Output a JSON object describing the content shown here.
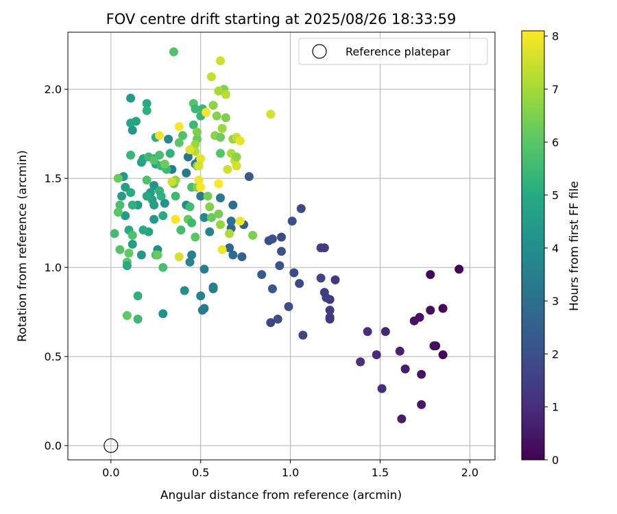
{
  "chart_data": {
    "type": "scatter",
    "title": "FOV centre drift starting at 2025/08/26 18:33:59",
    "xlabel": "Angular distance from reference (arcmin)",
    "ylabel": "Rotation from reference (arcmin)",
    "xlim": [
      -0.24,
      2.14
    ],
    "ylim": [
      -0.08,
      2.32
    ],
    "xticks": [
      0.0,
      0.5,
      1.0,
      1.5,
      2.0
    ],
    "xtick_labels": [
      "0.0",
      "0.5",
      "1.0",
      "1.5",
      "2.0"
    ],
    "yticks": [
      0.0,
      0.5,
      1.0,
      1.5,
      2.0
    ],
    "ytick_labels": [
      "0.0",
      "0.5",
      "1.0",
      "1.5",
      "2.0"
    ],
    "grid": true,
    "legend_position": "top-right",
    "legend": [
      "Reference platepar"
    ],
    "reference_point": {
      "x": 0.0,
      "y": 0.0
    },
    "colorbar": {
      "label": "Hours from first FF file",
      "min": 0,
      "max": 8.1,
      "colormap": "viridis",
      "ticks": [
        0,
        1,
        2,
        3,
        4,
        5,
        6,
        7,
        8
      ],
      "tick_labels": [
        "0",
        "1",
        "2",
        "3",
        "4",
        "5",
        "6",
        "7",
        "8"
      ]
    },
    "points": [
      [
        1.94,
        0.99,
        0.0
      ],
      [
        1.78,
        0.96,
        0.1
      ],
      [
        1.85,
        0.77,
        0.15
      ],
      [
        1.78,
        0.76,
        0.25
      ],
      [
        1.72,
        0.72,
        0.35
      ],
      [
        1.69,
        0.7,
        0.4
      ],
      [
        1.81,
        0.56,
        0.2
      ],
      [
        1.8,
        0.56,
        0.3
      ],
      [
        1.85,
        0.51,
        0.1
      ],
      [
        1.73,
        0.4,
        0.45
      ],
      [
        1.73,
        0.23,
        0.5
      ],
      [
        1.62,
        0.15,
        0.6
      ],
      [
        1.64,
        0.43,
        0.6
      ],
      [
        1.61,
        0.53,
        0.7
      ],
      [
        1.53,
        0.64,
        0.8
      ],
      [
        1.48,
        0.51,
        0.9
      ],
      [
        1.51,
        0.32,
        1.0
      ],
      [
        1.43,
        0.64,
        1.0
      ],
      [
        1.39,
        0.47,
        1.1
      ],
      [
        1.25,
        0.93,
        1.3
      ],
      [
        1.22,
        0.82,
        1.2
      ],
      [
        1.22,
        0.76,
        1.4
      ],
      [
        1.22,
        0.72,
        1.5
      ],
      [
        1.2,
        0.83,
        1.5
      ],
      [
        1.22,
        0.71,
        1.3
      ],
      [
        1.19,
        0.86,
        1.4
      ],
      [
        1.17,
        0.94,
        1.6
      ],
      [
        1.17,
        1.11,
        1.5
      ],
      [
        1.19,
        1.11,
        1.4
      ],
      [
        1.06,
        1.33,
        1.8
      ],
      [
        1.02,
        0.97,
        1.9
      ],
      [
        1.05,
        0.91,
        1.8
      ],
      [
        1.07,
        0.62,
        1.7
      ],
      [
        1.01,
        1.26,
        2.0
      ],
      [
        0.99,
        0.78,
        2.0
      ],
      [
        0.95,
        1.09,
        2.1
      ],
      [
        0.94,
        1.01,
        2.1
      ],
      [
        0.93,
        0.71,
        1.9
      ],
      [
        0.89,
        0.69,
        1.7
      ],
      [
        0.9,
        0.88,
        2.2
      ],
      [
        0.88,
        1.15,
        1.9
      ],
      [
        0.9,
        1.16,
        2.0
      ],
      [
        0.95,
        1.17,
        1.8
      ],
      [
        0.84,
        0.96,
        2.4
      ],
      [
        0.77,
        1.51,
        2.3
      ],
      [
        0.74,
        1.24,
        2.4
      ],
      [
        0.73,
        1.06,
        2.6
      ],
      [
        0.68,
        1.07,
        2.9
      ],
      [
        0.67,
        1.22,
        2.6
      ],
      [
        0.66,
        1.11,
        2.7
      ],
      [
        0.67,
        1.26,
        3.1
      ],
      [
        0.68,
        1.35,
        3.0
      ],
      [
        0.61,
        1.39,
        3.2
      ],
      [
        0.57,
        0.89,
        3.3
      ],
      [
        0.57,
        0.88,
        3.5
      ],
      [
        0.52,
        0.77,
        3.4
      ],
      [
        0.51,
        0.76,
        3.3
      ],
      [
        0.52,
        0.99,
        3.5
      ],
      [
        0.5,
        0.84,
        3.6
      ],
      [
        0.55,
        1.2,
        3.6
      ],
      [
        0.52,
        1.28,
        3.8
      ],
      [
        0.5,
        1.4,
        3.4
      ],
      [
        0.47,
        1.58,
        3.2
      ],
      [
        0.49,
        1.6,
        3.0
      ],
      [
        0.44,
        1.03,
        3.7
      ],
      [
        0.45,
        1.07,
        3.6
      ],
      [
        0.42,
        1.35,
        3.9
      ],
      [
        0.42,
        1.53,
        3.3
      ],
      [
        0.43,
        1.62,
        3.1
      ],
      [
        0.41,
        0.87,
        4.1
      ],
      [
        0.34,
        1.55,
        3.5
      ],
      [
        0.32,
        1.72,
        3.8
      ],
      [
        0.3,
        1.36,
        4.2
      ],
      [
        0.29,
        0.74,
        4.1
      ],
      [
        0.26,
        1.1,
        4.0
      ],
      [
        0.26,
        1.07,
        4.3
      ],
      [
        0.24,
        1.27,
        4.4
      ],
      [
        0.24,
        1.46,
        4.2
      ],
      [
        0.23,
        1.38,
        4.7
      ],
      [
        0.24,
        1.35,
        4.6
      ],
      [
        0.22,
        1.42,
        4.5
      ],
      [
        0.21,
        1.2,
        4.8
      ],
      [
        0.2,
        1.4,
        4.9
      ],
      [
        0.18,
        1.21,
        5.0
      ],
      [
        0.17,
        1.07,
        4.3
      ],
      [
        0.15,
        1.35,
        4.5
      ],
      [
        0.17,
        1.59,
        4.6
      ],
      [
        0.18,
        1.61,
        4.8
      ],
      [
        0.12,
        1.77,
        4.4
      ],
      [
        0.14,
        1.82,
        4.7
      ],
      [
        0.11,
        1.81,
        4.8
      ],
      [
        0.11,
        1.95,
        4.4
      ],
      [
        0.2,
        1.92,
        5.0
      ],
      [
        0.2,
        1.88,
        5.2
      ],
      [
        0.25,
        1.73,
        5.1
      ],
      [
        0.24,
        1.61,
        4.9
      ],
      [
        0.25,
        1.58,
        4.6
      ],
      [
        0.27,
        1.43,
        5.3
      ],
      [
        0.28,
        1.4,
        5.2
      ],
      [
        0.29,
        1.29,
        5.0
      ],
      [
        0.28,
        1.57,
        5.4
      ],
      [
        0.31,
        1.55,
        5.5
      ],
      [
        0.33,
        1.64,
        5.3
      ],
      [
        0.36,
        1.4,
        5.5
      ],
      [
        0.39,
        1.21,
        5.6
      ],
      [
        0.4,
        1.74,
        5.8
      ],
      [
        0.35,
        2.21,
        5.9
      ],
      [
        0.38,
        1.7,
        6.0
      ],
      [
        0.27,
        1.63,
        5.7
      ],
      [
        0.2,
        1.49,
        5.8
      ],
      [
        0.12,
        1.35,
        5.2
      ],
      [
        0.11,
        1.42,
        5.0
      ],
      [
        0.1,
        1.21,
        4.9
      ],
      [
        0.08,
        1.29,
        4.5
      ],
      [
        0.08,
        1.45,
        4.6
      ],
      [
        0.07,
        1.51,
        4.4
      ],
      [
        0.06,
        1.4,
        4.5
      ],
      [
        0.05,
        1.35,
        5.7
      ],
      [
        0.04,
        1.5,
        6.2
      ],
      [
        0.04,
        1.31,
        6.0
      ],
      [
        0.02,
        1.19,
        5.6
      ],
      [
        0.05,
        1.1,
        5.9
      ],
      [
        0.1,
        1.08,
        6.1
      ],
      [
        0.09,
        1.03,
        6.0
      ],
      [
        0.09,
        1.01,
        4.9
      ],
      [
        0.12,
        1.13,
        4.6
      ],
      [
        0.12,
        1.18,
        5.8
      ],
      [
        0.15,
        0.84,
        5.2
      ],
      [
        0.15,
        0.71,
        5.5
      ],
      [
        0.09,
        0.73,
        6.1
      ],
      [
        0.11,
        1.63,
        5.4
      ],
      [
        0.21,
        1.62,
        5.5
      ],
      [
        0.24,
        1.6,
        5.9
      ],
      [
        0.29,
        1.0,
        5.7
      ],
      [
        0.25,
        1.07,
        5.8
      ],
      [
        0.26,
        1.07,
        6.2
      ],
      [
        0.35,
        1.47,
        6.1
      ],
      [
        0.36,
        1.49,
        6.8
      ],
      [
        0.3,
        1.58,
        6.3
      ],
      [
        0.43,
        1.27,
        6.2
      ],
      [
        0.44,
        1.34,
        5.6
      ],
      [
        0.45,
        1.25,
        5.5
      ],
      [
        0.45,
        1.45,
        5.7
      ],
      [
        0.47,
        1.17,
        6.0
      ],
      [
        0.46,
        1.92,
        5.9
      ],
      [
        0.47,
        1.89,
        5.5
      ],
      [
        0.46,
        1.8,
        5.5
      ],
      [
        0.48,
        1.72,
        6.2
      ],
      [
        0.48,
        1.76,
        6.5
      ],
      [
        0.47,
        1.69,
        6.9
      ],
      [
        0.48,
        1.57,
        6.3
      ],
      [
        0.48,
        1.45,
        6.6
      ],
      [
        0.5,
        1.85,
        5.4
      ],
      [
        0.51,
        1.89,
        5.4
      ],
      [
        0.54,
        1.4,
        6.4
      ],
      [
        0.55,
        1.34,
        6.6
      ],
      [
        0.56,
        1.28,
        6.2
      ],
      [
        0.57,
        1.91,
        6.7
      ],
      [
        0.58,
        1.74,
        6.7
      ],
      [
        0.59,
        1.85,
        6.6
      ],
      [
        0.6,
        1.3,
        6.4
      ],
      [
        0.61,
        1.73,
        6.3
      ],
      [
        0.61,
        1.64,
        5.9
      ],
      [
        0.61,
        1.24,
        6.8
      ],
      [
        0.62,
        1.78,
        6.9
      ],
      [
        0.63,
        2.0,
        6.6
      ],
      [
        0.64,
        1.84,
        6.5
      ],
      [
        0.64,
        1.97,
        7.3
      ],
      [
        0.65,
        1.55,
        7.5
      ],
      [
        0.66,
        1.19,
        7.1
      ],
      [
        0.67,
        1.64,
        7.1
      ],
      [
        0.68,
        1.72,
        6.8
      ],
      [
        0.69,
        1.6,
        7.4
      ],
      [
        0.7,
        1.62,
        6.7
      ],
      [
        0.7,
        1.73,
        7.4
      ],
      [
        0.7,
        1.57,
        7.6
      ],
      [
        0.72,
        1.71,
        7.8
      ],
      [
        0.72,
        1.26,
        7.9
      ],
      [
        0.79,
        1.18,
        6.5
      ],
      [
        0.61,
        2.16,
        7.5
      ],
      [
        0.6,
        1.99,
        7.0
      ],
      [
        0.56,
        2.07,
        7.4
      ],
      [
        0.53,
        1.87,
        8.0
      ],
      [
        0.5,
        1.61,
        7.8
      ],
      [
        0.49,
        1.57,
        7.6
      ],
      [
        0.49,
        1.49,
        7.9
      ],
      [
        0.5,
        1.45,
        8.1
      ],
      [
        0.47,
        1.65,
        7.2
      ],
      [
        0.44,
        1.66,
        7.7
      ],
      [
        0.38,
        1.06,
        7.6
      ],
      [
        0.38,
        1.79,
        8.0
      ],
      [
        0.36,
        1.27,
        8.0
      ],
      [
        0.34,
        1.48,
        7.5
      ],
      [
        0.27,
        1.74,
        7.9
      ],
      [
        0.6,
        1.47,
        8.1
      ],
      [
        0.62,
        1.1,
        7.9
      ],
      [
        0.89,
        1.86,
        7.6
      ]
    ]
  }
}
